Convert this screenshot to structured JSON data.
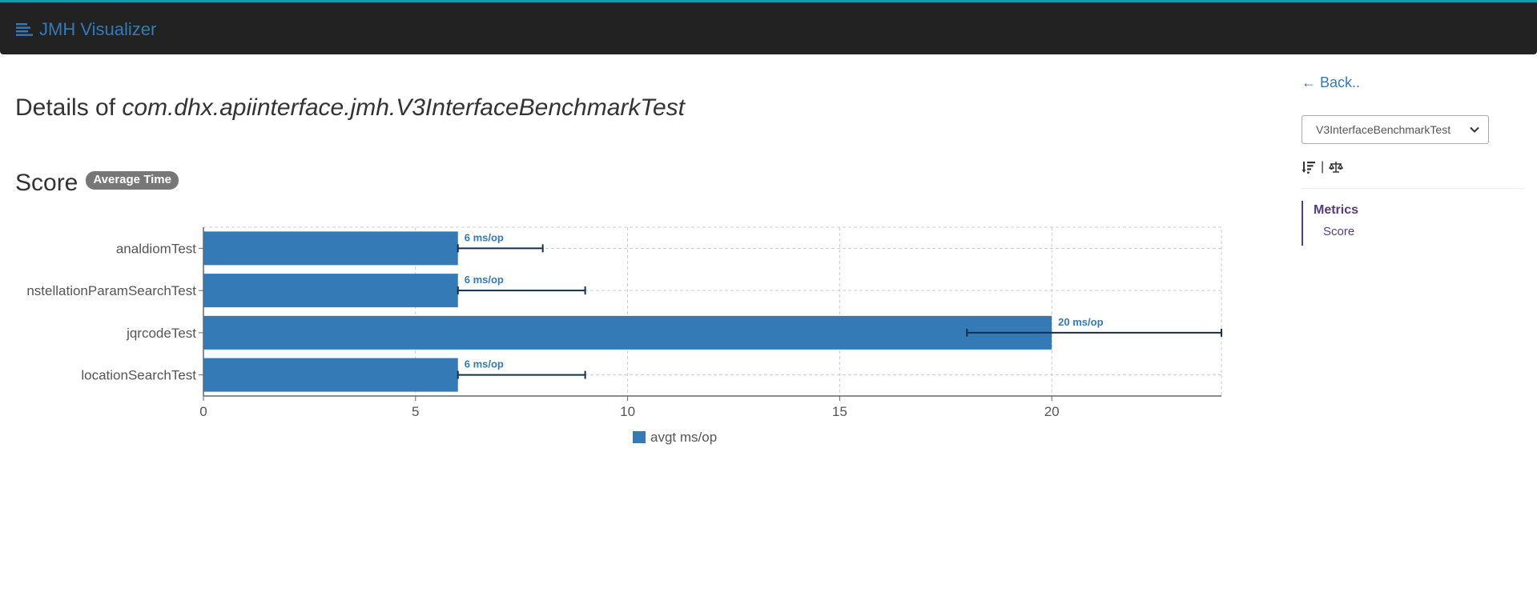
{
  "app": {
    "brand": "JMH Visualizer",
    "brand_icon": "list-lines-icon",
    "accent_color": "#14a0a8",
    "link_color": "#337ab7"
  },
  "main": {
    "title_prefix": "Details of",
    "title_class": "com.dhx.apiinterface.jmh.V3InterfaceBenchmarkTest",
    "section_title": "Score",
    "badge": "Average Time"
  },
  "sidebar": {
    "back_label": "← Back..",
    "select_value": "V3InterfaceBenchmarkTest",
    "tool_separator": "|",
    "tool_icons": [
      "sort-amount-icon",
      "balance-scale-icon"
    ],
    "toc_title": "Metrics",
    "toc_item": "Score"
  },
  "chart_data": {
    "type": "bar",
    "orientation": "horizontal",
    "categories": [
      "analdiomTest",
      "nstellationParamSearchTest",
      "jqrcodeTest",
      "locationSearchTest"
    ],
    "series": [
      {
        "name": "avgt ms/op",
        "color": "#337ab7",
        "values": [
          6,
          6,
          20,
          6
        ],
        "error_upper": [
          8,
          9,
          24,
          9
        ],
        "error_lower": [
          6,
          6,
          18,
          6
        ],
        "data_labels": [
          "6 ms/op",
          "6 ms/op",
          "20 ms/op",
          "6 ms/op"
        ]
      }
    ],
    "xlim": [
      0,
      24
    ],
    "x_ticks": [
      0,
      5,
      10,
      15,
      20
    ],
    "grid": true,
    "legend": "bottom-center"
  }
}
